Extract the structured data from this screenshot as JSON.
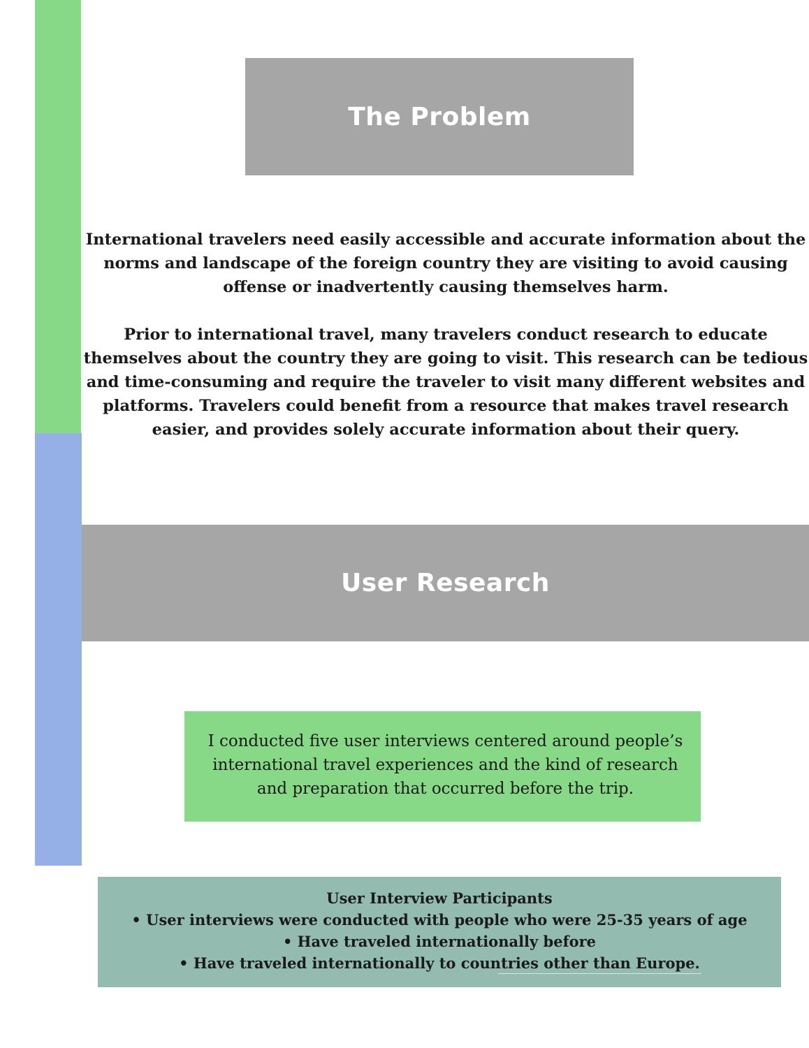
{
  "problem": {
    "title": "The Problem",
    "paragraphs": [
      "International travelers need easily accessible and accurate information about the norms and landscape of the foreign country they are visiting to avoid causing offense or inadvertently causing themselves harm.",
      "Prior to international travel, many travelers conduct research to educate themselves about the country they are going to visit. This research can be tedious and time-consuming and require the traveler to visit many different websites and platforms. Travelers could benefit from a resource that makes travel research easier, and provides solely accurate information about their query."
    ]
  },
  "research": {
    "title": "User Research",
    "summary": "I conducted five user interviews centered around people’s international travel experiences and the kind of research and preparation that occurred before the trip.",
    "participants": {
      "heading": "User Interview Participants",
      "items": [
        "• User interviews were conducted with people who were 25-35 years of age",
        "• Have traveled internationally before",
        "• Have traveled internationally to countries other than Europe."
      ]
    }
  },
  "colors": {
    "accent_green": "#88d987",
    "accent_blue": "#95afe7",
    "header_gray": "#a6a6a6",
    "participants_teal": "#94bbb0"
  }
}
